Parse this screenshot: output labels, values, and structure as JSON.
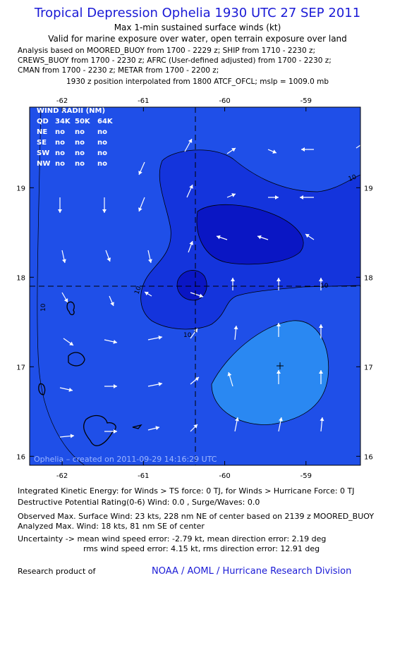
{
  "header": {
    "title": "Tropical Depression Ophelia 1930 UTC 27 SEP 2011",
    "subtitle": "Max 1-min sustained surface winds (kt)",
    "validity": "Valid for marine exposure over water, open terrain exposure over land",
    "analysis": [
      "Analysis based on MOORED_BUOY from 1700 - 2229 z; SHIP from 1710 - 2230 z;",
      "CREWS_BUOY from 1700 - 2230 z; AFRC (User-defined adjusted) from 1700 - 2230 z;",
      "CMAN from 1700 - 2230 z; METAR from 1700 - 2200 z;"
    ],
    "position": "1930 z position interpolated from 1800 ATCF_OFCL; mslp = 1009.0 mb"
  },
  "map": {
    "xlim": [
      -62.4,
      -58.33
    ],
    "ylim": [
      15.9,
      19.9
    ],
    "xticks": [
      -62,
      -61,
      -60,
      -59
    ],
    "yticks": [
      16,
      17,
      18,
      19
    ],
    "wind_radii": {
      "title": "WIND RADII (NM)",
      "columns": [
        "QD",
        "34K",
        "50K",
        "64K"
      ],
      "rows": [
        [
          "NE",
          "no",
          "no",
          "no"
        ],
        [
          "SE",
          "no",
          "no",
          "no"
        ],
        [
          "SW",
          "no",
          "no",
          "no"
        ],
        [
          "NW",
          "no",
          "no",
          "no"
        ]
      ]
    },
    "contour_labels": [
      "10",
      "10",
      "10",
      "10",
      "10"
    ],
    "caption": "Ophelia – created on 2011-09-29 14:16:29 UTC"
  },
  "footer": {
    "lines": [
      "Integrated Kinetic Energy:  for Winds > TS force: 0 TJ,  for Winds > Hurricane Force: 0 TJ",
      "Destructive Potential Rating(0-6)   Wind: 0.0 , Surge/Waves: 0.0",
      "Observed Max. Surface Wind: 23 kts, 228 nm NE of center based on 2139 z MOORED_BUOY",
      "Analyzed Max. Wind: 18 kts, 81 nm SE of center",
      "Uncertainty -> mean wind speed error:  -2.79 kt,   mean direction error: 2.19 deg",
      "rms wind speed error:  4.15 kt,   rms direction error: 12.91 deg"
    ],
    "research": "Research product of",
    "organization": "NOAA / AOML / Hurricane Research Division"
  }
}
